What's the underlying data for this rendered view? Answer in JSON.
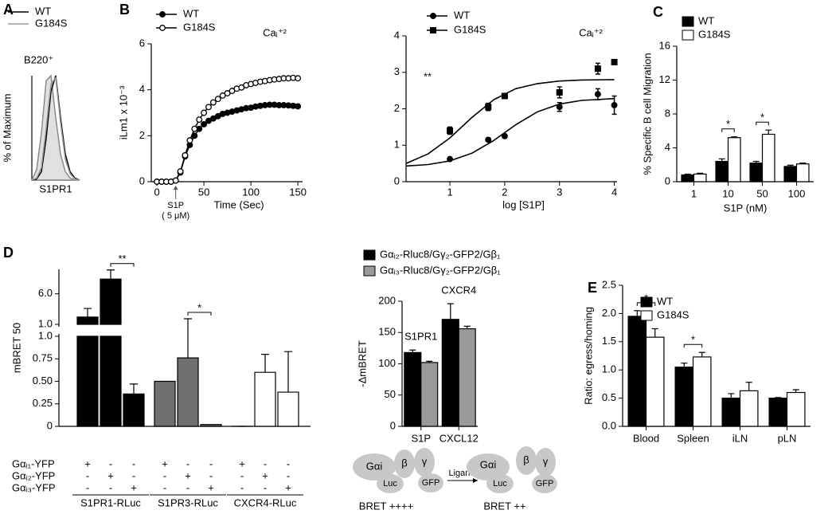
{
  "chart_data": [
    {
      "type": "line",
      "panel": "A",
      "title": "B220⁺",
      "ylabel": "% of Maximum",
      "xlabel": "S1PR1",
      "xlim": [
        0,
        10
      ],
      "ylim": [
        0,
        100
      ],
      "x": [
        0,
        1,
        2,
        3,
        4,
        5,
        6,
        7,
        8,
        9,
        10
      ],
      "series": [
        {
          "color": "#8a8a8a",
          "fill": "#e0e0e0",
          "values": [
            0,
            10,
            45,
            95,
            100,
            60,
            25,
            8,
            2,
            0,
            0
          ]
        },
        {
          "name": "WT",
          "color": "#000000",
          "values": [
            0,
            1,
            8,
            40,
            85,
            100,
            60,
            25,
            8,
            2,
            0
          ]
        },
        {
          "name": "G184S",
          "color": "#9a9a9a",
          "values": [
            0,
            2,
            12,
            50,
            92,
            98,
            55,
            20,
            6,
            1,
            0
          ]
        }
      ]
    },
    {
      "type": "line",
      "panel": "B",
      "ylabel": "iLm1 x 10⁻³",
      "xlabel": "Time (Sec)",
      "annotations": [
        "Caᵢ⁺²"
      ],
      "stimulus": [
        "S1P",
        "( 5 μM)"
      ],
      "xlim": [
        -6,
        155
      ],
      "xticks": [
        0,
        50,
        100,
        150
      ],
      "ylim": [
        0,
        6
      ],
      "yticks": [
        0,
        2,
        4,
        6
      ],
      "x": [
        0,
        5,
        10,
        15,
        20,
        25,
        30,
        35,
        40,
        45,
        50,
        55,
        60,
        65,
        70,
        75,
        80,
        85,
        90,
        95,
        100,
        105,
        110,
        115,
        120,
        125,
        130,
        135,
        140,
        145,
        150
      ],
      "series": [
        {
          "name": "WT",
          "color": "#000000",
          "marker": "filled-circle",
          "values": [
            0,
            0,
            0,
            0,
            0.05,
            0.4,
            1.1,
            1.6,
            2.0,
            2.3,
            2.5,
            2.65,
            2.75,
            2.85,
            2.95,
            3.0,
            3.05,
            3.1,
            3.15,
            3.2,
            3.22,
            3.27,
            3.3,
            3.33,
            3.35,
            3.35,
            3.33,
            3.33,
            3.32,
            3.3,
            3.28
          ]
        },
        {
          "name": "G184S",
          "color": "#000000",
          "marker": "open-circle",
          "values": [
            0,
            0,
            0,
            0,
            0.05,
            0.45,
            1.15,
            1.8,
            2.3,
            2.7,
            3.0,
            3.25,
            3.45,
            3.6,
            3.75,
            3.85,
            3.95,
            4.05,
            4.1,
            4.2,
            4.25,
            4.3,
            4.35,
            4.38,
            4.42,
            4.45,
            4.47,
            4.5,
            4.5,
            4.52,
            4.5
          ]
        }
      ]
    },
    {
      "type": "scatter",
      "xlabel": "log [S1P]",
      "annotations": [
        "**",
        "Caᵢ⁺²"
      ],
      "xlim": [
        0.2,
        4.05
      ],
      "xticks": [
        1,
        2,
        3,
        4
      ],
      "ylim": [
        0,
        4
      ],
      "yticks": [
        0,
        1,
        2,
        3,
        4
      ],
      "x": [
        1,
        1.7,
        2,
        3,
        3.7,
        4
      ],
      "series": [
        {
          "name": "WT",
          "color": "#000000",
          "marker": "filled-circle",
          "values": [
            0.62,
            1.15,
            1.25,
            2.05,
            2.4,
            2.1
          ],
          "errors": [
            0.03,
            0.05,
            0.05,
            0.12,
            0.15,
            0.25
          ]
        },
        {
          "name": "G184S",
          "color": "#000000",
          "marker": "square",
          "values": [
            1.4,
            2.05,
            2.35,
            2.45,
            3.1,
            3.28
          ],
          "errors": [
            0.1,
            0.1,
            0.05,
            0.15,
            0.15,
            0.05
          ]
        }
      ],
      "fits": [
        {
          "x": [
            0.2,
            0.6,
            1.0,
            1.4,
            1.8,
            2.2,
            2.6,
            3.0,
            3.4,
            4.0
          ],
          "values": [
            0.43,
            0.47,
            0.57,
            0.78,
            1.13,
            1.56,
            1.92,
            2.13,
            2.23,
            2.28
          ]
        },
        {
          "x": [
            0.2,
            0.6,
            1.0,
            1.4,
            1.8,
            2.2,
            2.6,
            3.0,
            3.4,
            4.0
          ],
          "values": [
            0.5,
            0.76,
            1.2,
            1.76,
            2.25,
            2.55,
            2.69,
            2.76,
            2.79,
            2.8
          ]
        }
      ]
    },
    {
      "type": "bar",
      "panel": "C",
      "ylabel": "% Specific B cell Migration",
      "xlabel": "S1P (nM)",
      "categories": [
        "1",
        "10",
        "50",
        "100"
      ],
      "ylim": [
        0,
        16
      ],
      "yticks": [
        0,
        4,
        8,
        12,
        16
      ],
      "series": [
        {
          "name": "WT",
          "color": "#000000",
          "values": [
            0.8,
            2.4,
            2.2,
            1.8
          ],
          "errors": [
            0.1,
            0.3,
            0.2,
            0.15
          ]
        },
        {
          "name": "G184S",
          "color": "#ffffff",
          "values": [
            0.9,
            5.2,
            5.6,
            2.1
          ],
          "errors": [
            0.1,
            0.1,
            0.5,
            0.1
          ]
        }
      ],
      "significance": [
        null,
        "*",
        "*",
        null
      ]
    },
    {
      "type": "broken-bar",
      "panel": "D",
      "ylabel": "mBRET 50",
      "ylim": [
        0,
        1
      ],
      "yticks": [
        0,
        0.25,
        {
          "value": 0.5,
          "label": "0.50"
        },
        0.75,
        {
          "value": 1,
          "label": "1.0"
        }
      ],
      "y2lim": [
        1,
        10
      ],
      "y2ticks": [
        {
          "value": 1,
          "label": "1.0"
        },
        {
          "value": 6,
          "label": "6.0"
        }
      ],
      "groups": [
        {
          "label": "S1PR1-RLuc",
          "color": "#000000",
          "values": [
            2.2,
            8.4,
            0.36
          ],
          "errors": [
            1.4,
            1.5,
            0.11
          ],
          "significance": [
            null,
            "**",
            null
          ]
        },
        {
          "label": "S1PR3-RLuc",
          "color": "#707070",
          "values": [
            0.5,
            0.76,
            0.02
          ],
          "errors": [
            null,
            1.15,
            null
          ],
          "significance": [
            null,
            "*",
            null
          ]
        },
        {
          "label": "CXCR4-RLuc",
          "color": "#ffffff",
          "values": [
            0,
            0.6,
            0.38
          ],
          "errors": [
            0,
            0.2,
            0.45
          ],
          "significance": [
            null,
            null,
            null
          ]
        }
      ],
      "table": [
        {
          "label": "Gαᵢ₁-YFP",
          "cells": [
            "+",
            "-",
            "-",
            "+",
            "-",
            "-",
            "+",
            "-",
            "-"
          ]
        },
        {
          "label": "Gαᵢ₂-YFP",
          "cells": [
            "-",
            "+",
            "-",
            "-",
            "+",
            "-",
            "-",
            "+",
            "-"
          ]
        },
        {
          "label": "Gαᵢ₃-YFP",
          "cells": [
            "-",
            "-",
            "+",
            "-",
            "-",
            "+",
            "-",
            "-",
            "+"
          ]
        }
      ]
    },
    {
      "type": "bar",
      "ylabel": "-ΔmBRET",
      "categories": [
        "S1P",
        "CXCL12"
      ],
      "category_notes": [
        "S1PR1",
        "CXCR4"
      ],
      "ylim": [
        0,
        200
      ],
      "yticks": [
        0,
        50,
        100,
        150,
        200
      ],
      "series": [
        {
          "name": "Gαᵢ₂-Rluc8/Gγ₂-GFP2/Gβ₁",
          "color": "#000000",
          "values": [
            118,
            171
          ],
          "errors": [
            4,
            25
          ]
        },
        {
          "name": "Gαᵢ₃-Rluc8/Gγ₂-GFP2/Gβ₁",
          "color": "#999999",
          "values": [
            102,
            156
          ],
          "errors": [
            2,
            4
          ]
        }
      ]
    },
    {
      "type": "bar",
      "panel": "E",
      "ylabel": "Ratio: egress/homing",
      "categories": [
        "Blood",
        "Spleen",
        "iLN",
        "pLN"
      ],
      "ylim": [
        0,
        2.5
      ],
      "yticks": [
        {
          "value": 0,
          "label": "0.0"
        },
        0.5,
        {
          "value": 1,
          "label": "1.0"
        },
        1.5,
        {
          "value": 2,
          "label": "2.0"
        },
        2.5
      ],
      "series": [
        {
          "name": "WT",
          "color": "#000000",
          "values": [
            1.95,
            1.05,
            0.5,
            0.5
          ],
          "errors": [
            0.1,
            0.07,
            0.08,
            0.01
          ]
        },
        {
          "name": "G184S",
          "color": "#ffffff",
          "values": [
            1.58,
            1.23,
            0.63,
            0.6
          ],
          "errors": [
            0.15,
            0.08,
            0.15,
            0.05
          ]
        }
      ],
      "significance": [
        "*",
        "*",
        null,
        null
      ]
    }
  ],
  "diagram": {
    "left": {
      "nodes": [
        "Gαi",
        "β",
        "γ",
        "Luc",
        "GFP"
      ],
      "label": "BRET ++++"
    },
    "arrow": "Ligand",
    "right": {
      "nodes": [
        "Gαi",
        "Luc",
        "β",
        "γ",
        "GFP"
      ],
      "label": "BRET ++"
    }
  }
}
